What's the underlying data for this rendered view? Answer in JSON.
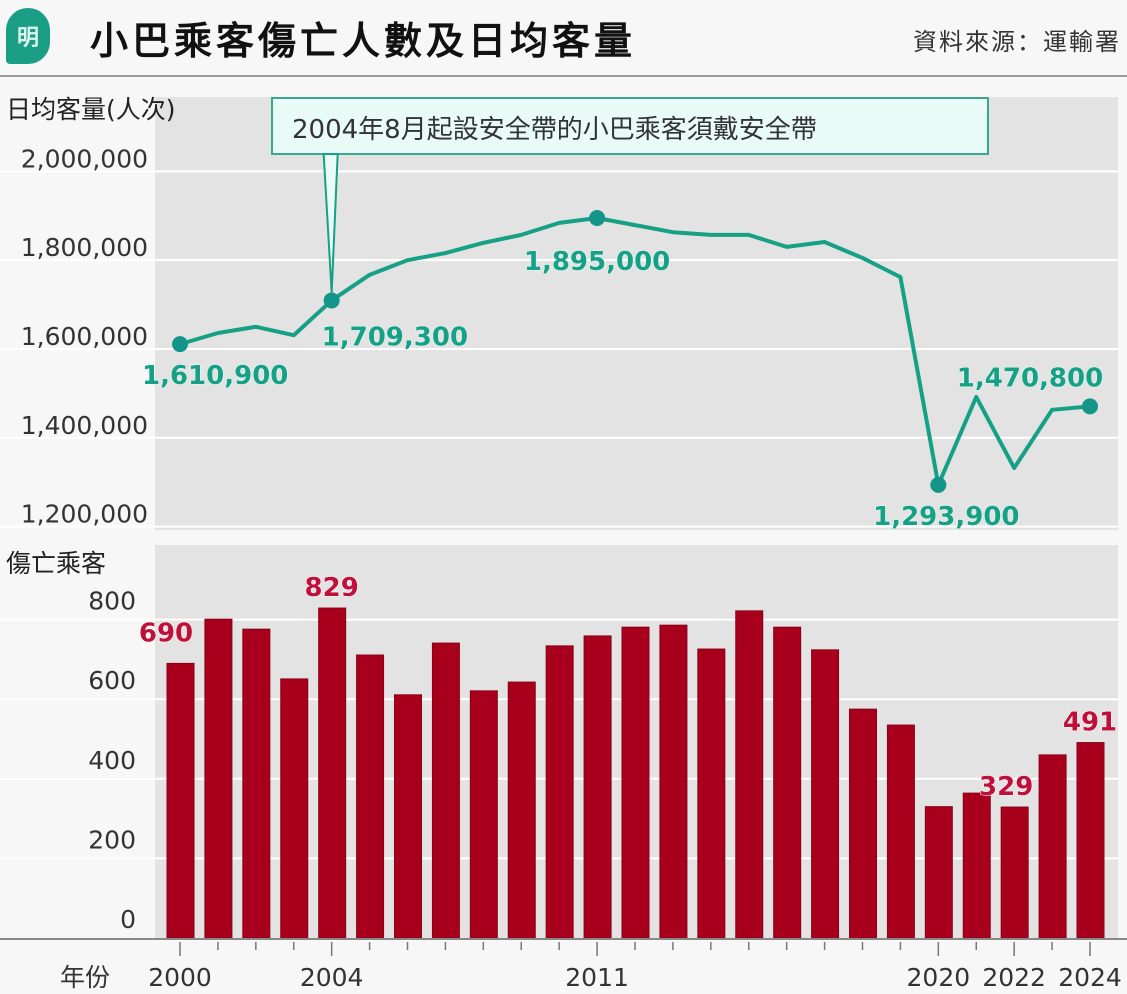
{
  "header": {
    "logo_text": "明",
    "title": "小巴乘客傷亡人數及日均客量",
    "source": "資料來源：運輸署"
  },
  "colors": {
    "line": "#16a085",
    "bar": "#a8001c",
    "bar_label": "#c0103a",
    "plot_bg": "#e3e3e3",
    "annotation_fill": "#e9fbf6"
  },
  "chart_data": [
    {
      "type": "line",
      "ylabel": "日均客量(人次)",
      "ylim": [
        1200000,
        2000000
      ],
      "yticks": [
        "2,000,000",
        "1,800,000",
        "1,600,000",
        "1,400,000",
        "1,200,000"
      ],
      "ytick_values": [
        2000000,
        1800000,
        1600000,
        1400000,
        1200000
      ],
      "grid": true,
      "x": [
        2000,
        2001,
        2002,
        2003,
        2004,
        2005,
        2006,
        2007,
        2008,
        2009,
        2010,
        2011,
        2012,
        2013,
        2014,
        2015,
        2016,
        2017,
        2018,
        2019,
        2020,
        2021,
        2022,
        2023,
        2024
      ],
      "values": [
        1610900,
        1636000,
        1650000,
        1631000,
        1709300,
        1767000,
        1800000,
        1816000,
        1839000,
        1857000,
        1884000,
        1895000,
        1879000,
        1863000,
        1857000,
        1857000,
        1830000,
        1841000,
        1805000,
        1762000,
        1293900,
        1492000,
        1332000,
        1463000,
        1470800
      ],
      "data_labels": [
        {
          "x": 2000,
          "text": "1,610,900"
        },
        {
          "x": 2004,
          "text": "1,709,300"
        },
        {
          "x": 2011,
          "text": "1,895,000"
        },
        {
          "x": 2020,
          "text": "1,293,900"
        },
        {
          "x": 2024,
          "text": "1,470,800"
        }
      ],
      "annotation": {
        "x": 2004,
        "text": "2004年8月起設安全帶的小巴乘客須戴安全帶"
      }
    },
    {
      "type": "bar",
      "ylabel": "傷亡乘客",
      "xlabel": "年份",
      "ylim": [
        0,
        850
      ],
      "yticks": [
        "800",
        "600",
        "400",
        "200",
        "0"
      ],
      "ytick_values": [
        800,
        600,
        400,
        200,
        0
      ],
      "grid": true,
      "categories": [
        2000,
        2001,
        2002,
        2003,
        2004,
        2005,
        2006,
        2007,
        2008,
        2009,
        2010,
        2011,
        2012,
        2013,
        2014,
        2015,
        2016,
        2017,
        2018,
        2019,
        2020,
        2021,
        2022,
        2023,
        2024
      ],
      "values": [
        690,
        801,
        776,
        651,
        829,
        711,
        611,
        741,
        621,
        643,
        734,
        759,
        781,
        786,
        726,
        822,
        781,
        724,
        575,
        535,
        330,
        364,
        329,
        460,
        491
      ],
      "data_labels": [
        {
          "x": 2000,
          "text": "690"
        },
        {
          "x": 2004,
          "text": "829"
        },
        {
          "x": 2022,
          "text": "329"
        },
        {
          "x": 2024,
          "text": "491"
        }
      ],
      "xtick_labels": [
        "2000",
        "2004",
        "2011",
        "2020",
        "2022",
        "2024"
      ]
    }
  ]
}
